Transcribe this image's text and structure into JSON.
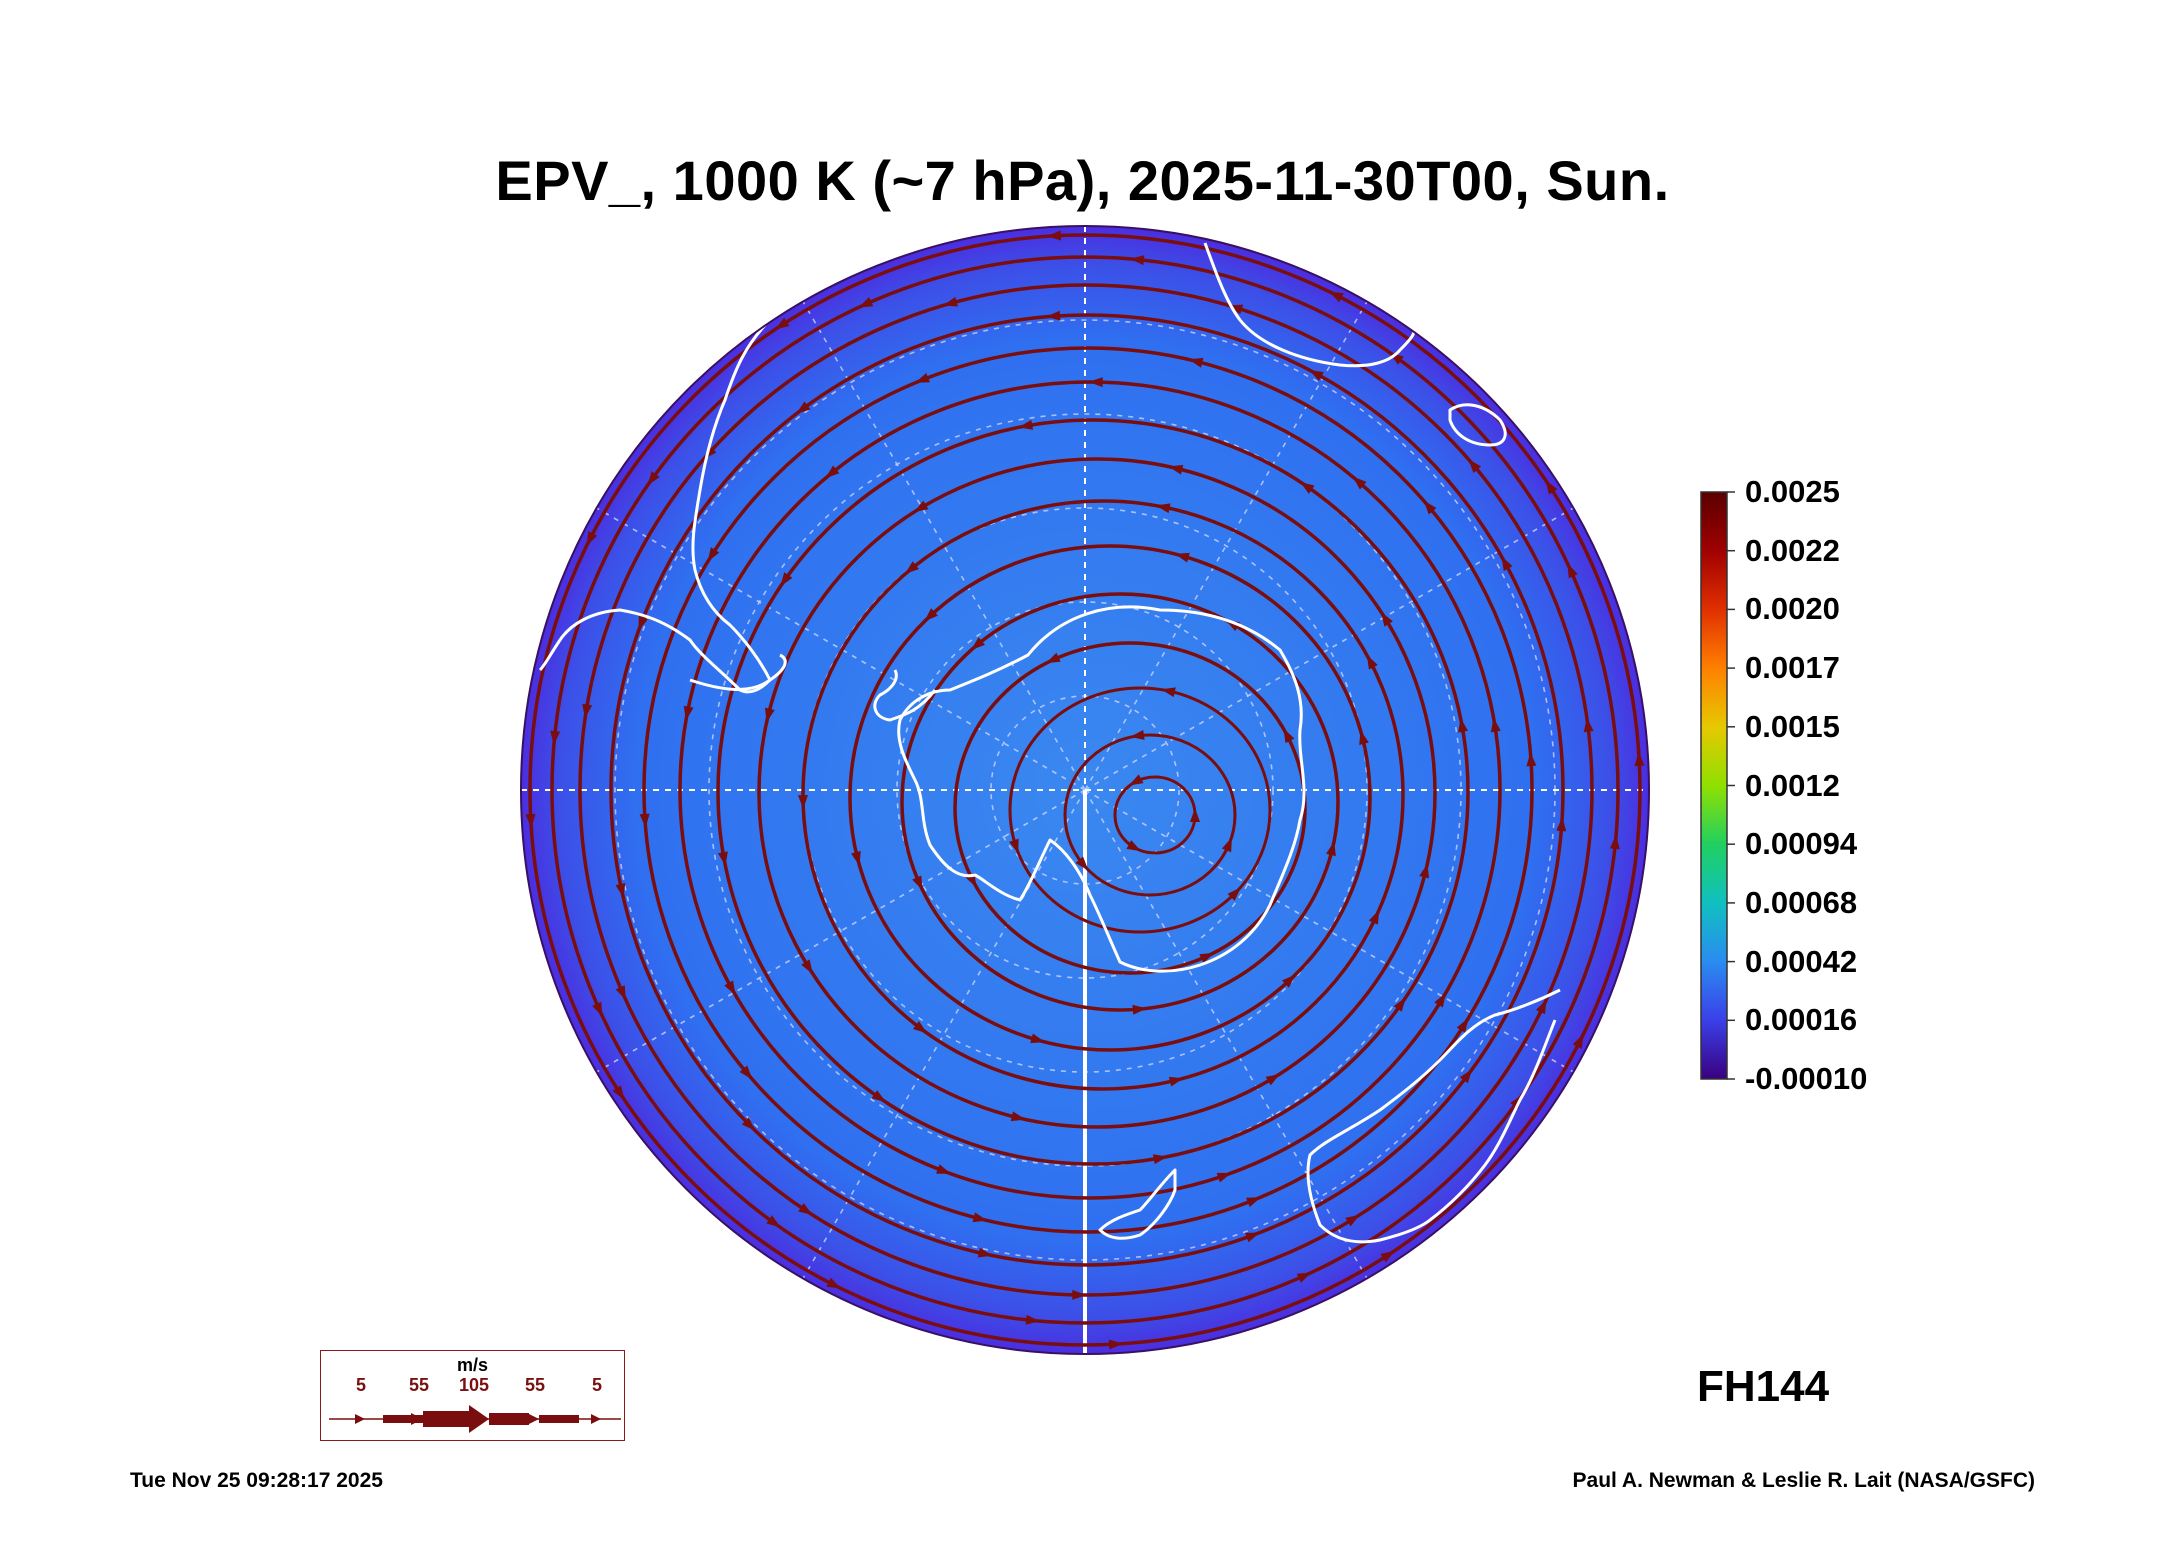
{
  "title": "EPV_, 1000 K (~7 hPa), 2025-11-30T00, Sun.",
  "colorbar": {
    "ticks": [
      "0.0025",
      "0.0022",
      "0.0020",
      "0.0017",
      "0.0015",
      "0.0012",
      "0.00094",
      "0.00068",
      "0.00042",
      "0.00016",
      "-0.00010"
    ],
    "colors": [
      "#5a0000",
      "#a00000",
      "#e03000",
      "#ff8000",
      "#e6c800",
      "#90e000",
      "#20d060",
      "#10c0c0",
      "#2a8cf0",
      "#3a40e8",
      "#3a0080"
    ]
  },
  "map": {
    "field": "EPV_",
    "projection": "south polar stereographic",
    "field_colors": {
      "outer": "#4a2ee0",
      "mid": "#2f6ff0",
      "inner": "#3a88f0"
    },
    "streamline_color": "#7a0d0d",
    "coastline_color": "#ffffff"
  },
  "wind_legend": {
    "unit": "m/s",
    "values": [
      "5",
      "55",
      "105",
      "55",
      "5"
    ]
  },
  "forecast_hour": "FH144",
  "timestamp": "Tue Nov 25 09:28:17 2025",
  "credit": "Paul A. Newman & Leslie R. Lait (NASA/GSFC)"
}
